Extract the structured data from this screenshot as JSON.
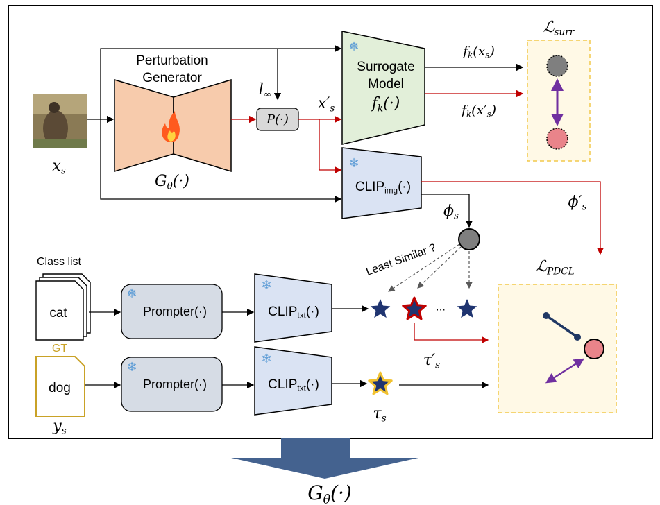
{
  "input": {
    "label": [
      {
        "text": "x"
      },
      {
        "sub": "s"
      }
    ]
  },
  "generator": {
    "title_lines": [
      "Perturbation",
      "Generator"
    ],
    "symbol": [
      {
        "text": "G"
      },
      {
        "sub": "θ"
      },
      {
        "text": "(·)"
      }
    ]
  },
  "projection": {
    "norm": [
      {
        "text": "l"
      },
      {
        "sub": "∞"
      }
    ],
    "operator": "P(·)",
    "output": [
      {
        "text": "x′"
      },
      {
        "sub": "s"
      }
    ]
  },
  "surrogate": {
    "title_lines": [
      "Surrogate",
      "Model"
    ],
    "symbol": [
      {
        "text": "f"
      },
      {
        "sub": "k"
      },
      {
        "text": "(·)"
      }
    ],
    "clean_output": [
      {
        "text": "f"
      },
      {
        "sub": "k"
      },
      {
        "text": "(x"
      },
      {
        "sub": "s"
      },
      {
        "text": ")"
      }
    ],
    "adv_output": [
      {
        "text": "f"
      },
      {
        "sub": "k"
      },
      {
        "text": "(x′"
      },
      {
        "sub": "s"
      },
      {
        "text": ")"
      }
    ],
    "loss": [
      {
        "text": "ℒ"
      },
      {
        "sub": "surr"
      }
    ]
  },
  "clip_image": {
    "label": [
      {
        "text": "CLIP"
      },
      {
        "sub": "img"
      },
      {
        "text": "(·)"
      }
    ],
    "clean_embedding": [
      {
        "text": "ϕ"
      },
      {
        "sub": "s"
      }
    ],
    "adv_embedding": [
      {
        "text": "ϕ′"
      },
      {
        "sub": "s"
      }
    ]
  },
  "text_branch": {
    "class_list_title": "Class list",
    "class_example": "cat",
    "gt_title": "GT",
    "gt_example": "dog",
    "gt_symbol": [
      {
        "text": "y"
      },
      {
        "sub": "s"
      }
    ],
    "prompter": "Prompter(·)",
    "clip_text": [
      {
        "text": "CLIP"
      },
      {
        "sub": "txt"
      },
      {
        "text": "(·)"
      }
    ],
    "selection_note": "Least Similar ?",
    "ellipsis": "···",
    "negative_embedding": [
      {
        "text": "τ′"
      },
      {
        "sub": "s"
      }
    ],
    "gt_embedding": [
      {
        "text": "τ"
      },
      {
        "sub": "s"
      }
    ]
  },
  "pdcl": {
    "loss": [
      {
        "text": "ℒ"
      },
      {
        "sub": "PDCL"
      }
    ]
  },
  "update": {
    "symbol": [
      {
        "text": "G"
      },
      {
        "sub": "θ"
      },
      {
        "text": "(·)"
      }
    ]
  }
}
